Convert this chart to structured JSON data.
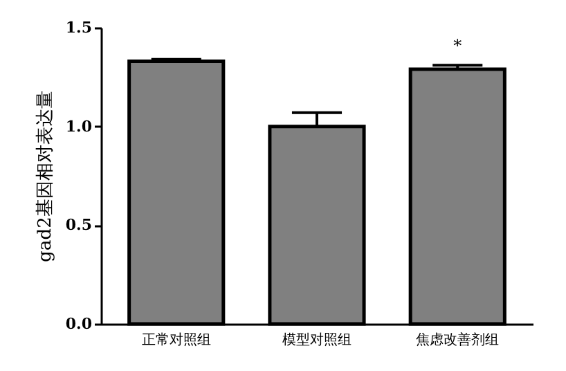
{
  "chart_data": {
    "type": "bar",
    "ylabel": "gad2基因相对表达量",
    "categories": [
      "正常对照组",
      "模型对照组",
      "焦虑改善剂组"
    ],
    "values": [
      1.33,
      1.0,
      1.29
    ],
    "errors": [
      0.01,
      0.07,
      0.02
    ],
    "color": "#808080",
    "ylim": [
      0,
      1.5
    ],
    "yticks": [
      {
        "value": 0,
        "label": "0.0"
      },
      0.5,
      {
        "value": 1,
        "label": "1.0"
      },
      1.5
    ],
    "annotations": [
      "*"
    ],
    "grid": false
  }
}
